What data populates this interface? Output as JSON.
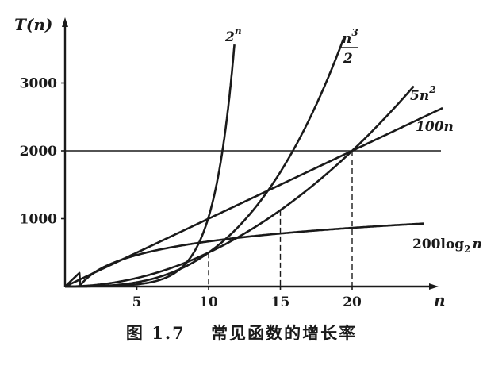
{
  "chart_data": {
    "type": "line",
    "xlabel": "n",
    "ylabel": "T(n)",
    "xlim": [
      0,
      25
    ],
    "ylim": [
      0,
      3800
    ],
    "x_ticks": [
      5,
      10,
      15,
      20
    ],
    "y_ticks": [
      1000,
      2000,
      3000
    ],
    "x_tick_labels": [
      "5",
      "10",
      "15",
      "20"
    ],
    "y_tick_labels": [
      "1000",
      "2000",
      "3000"
    ],
    "reference_lines": [
      {
        "type": "horizontal",
        "y": 2000
      },
      {
        "type": "vertical",
        "x": 10
      },
      {
        "type": "vertical",
        "x": 15
      },
      {
        "type": "vertical",
        "x": 20
      }
    ],
    "series": [
      {
        "name": "2^n",
        "label_main": "2",
        "label_sup": "n",
        "formula": "2^n",
        "x_range": [
          0,
          11.8
        ]
      },
      {
        "name": "n^3/2",
        "label_num": "n",
        "label_sup": "3",
        "label_den": "2",
        "formula": "n^3/2",
        "x_range": [
          0,
          19.5
        ]
      },
      {
        "name": "5n^2",
        "label_main": "5n",
        "label_sup": "2",
        "formula": "5n^2",
        "x_range": [
          0,
          24.3
        ]
      },
      {
        "name": "100n",
        "label_main": "100n",
        "formula": "100n",
        "x_range": [
          0,
          26.3
        ]
      },
      {
        "name": "200log2 n",
        "label_main": "200log",
        "label_sub": "2",
        "label_tail": "n",
        "formula": "200log2n",
        "x_range": [
          0,
          25
        ]
      }
    ]
  },
  "caption": "图 1.7　 常见函数的增长率"
}
